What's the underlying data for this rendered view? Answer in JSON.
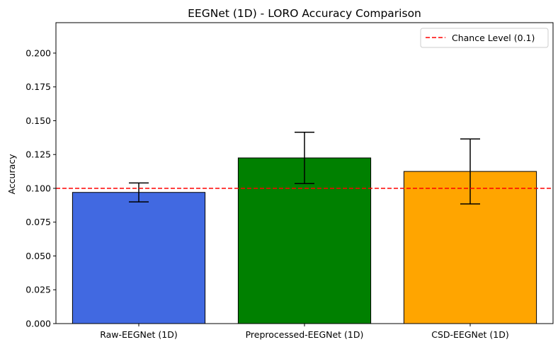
{
  "chart_data": {
    "type": "bar",
    "title": "EEGNet (1D) - LORO Accuracy Comparison",
    "xlabel": "",
    "ylabel": "Accuracy",
    "categories": [
      "Raw-EEGNet (1D)",
      "Preprocessed-EEGNet (1D)",
      "CSD-EEGNet (1D)"
    ],
    "values": [
      0.097,
      0.1225,
      0.1125
    ],
    "errors": [
      0.007,
      0.019,
      0.024
    ],
    "colors": [
      "#4169e1",
      "#008000",
      "#ffa500"
    ],
    "ylim": [
      0,
      0.2225
    ],
    "yticks": [
      0.0,
      0.025,
      0.05,
      0.075,
      0.1,
      0.125,
      0.15,
      0.175,
      0.2
    ],
    "ytick_labels": [
      "0.000",
      "0.025",
      "0.050",
      "0.075",
      "0.100",
      "0.125",
      "0.150",
      "0.175",
      "0.200"
    ],
    "reference_line": {
      "value": 0.1,
      "label": "Chance Level (0.1)",
      "color": "#ff0000",
      "style": "dashed"
    },
    "legend_position": "top-right",
    "grid": false
  }
}
